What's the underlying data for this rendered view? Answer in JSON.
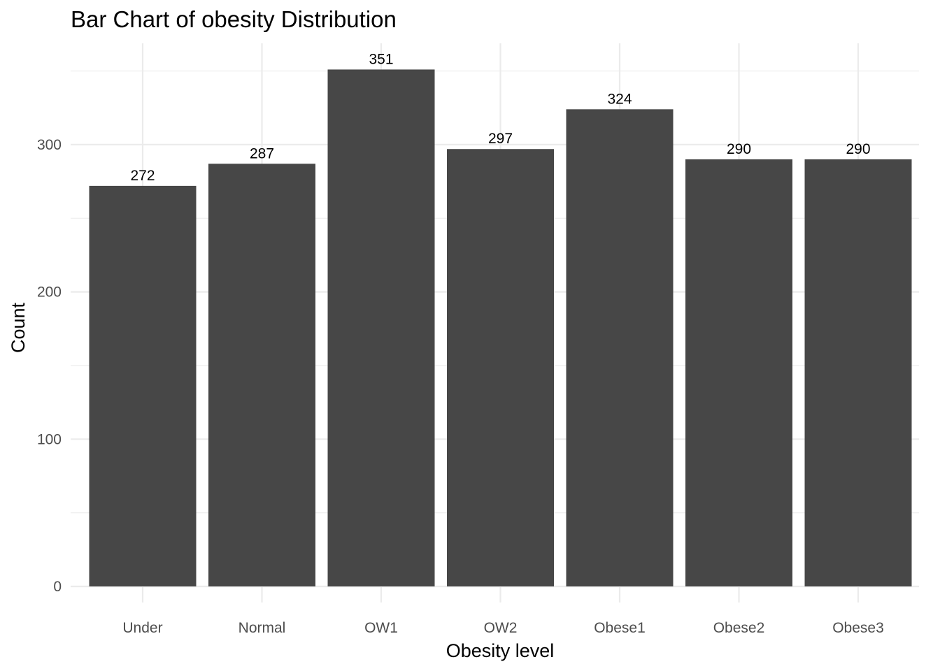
{
  "chart_data": {
    "type": "bar",
    "title": "Bar Chart of obesity Distribution",
    "xlabel": "Obesity level",
    "ylabel": "Count",
    "categories": [
      "Under",
      "Normal",
      "OW1",
      "OW2",
      "Obese1",
      "Obese2",
      "Obese3"
    ],
    "values": [
      272,
      287,
      351,
      297,
      324,
      290,
      290
    ],
    "data_labels": [
      "272",
      "287",
      "351",
      "297",
      "324",
      "290",
      "290"
    ],
    "yticks": [
      0,
      100,
      200,
      300
    ],
    "ytick_labels": [
      "0",
      "100",
      "200",
      "300"
    ],
    "ylim": [
      0,
      368.55
    ],
    "grid": true,
    "legend": "none",
    "colors": {
      "bar": "#474747",
      "grid": "#ebebeb",
      "tick_text": "#4d4d4d",
      "text": "#000000",
      "background": "#ffffff"
    }
  }
}
